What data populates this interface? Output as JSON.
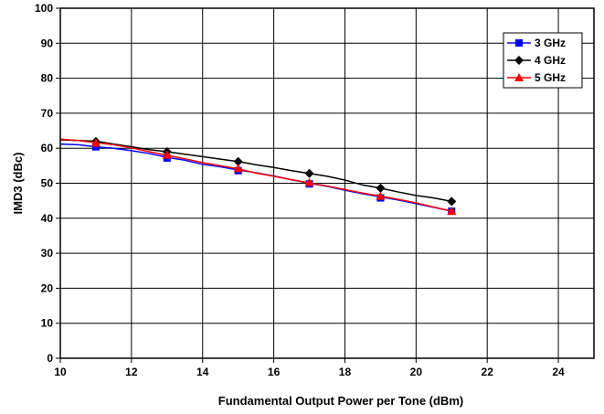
{
  "chart_data": {
    "type": "line",
    "title": "",
    "xlabel": "Fundamental Output Power per Tone (dBm)",
    "ylabel": "IMD3 (dBc)",
    "xlim": [
      10,
      25
    ],
    "ylim": [
      0,
      100
    ],
    "x_ticks": [
      10,
      12,
      14,
      16,
      18,
      20,
      22,
      24
    ],
    "y_ticks": [
      0,
      10,
      20,
      30,
      40,
      50,
      60,
      70,
      80,
      90,
      100
    ],
    "grid": true,
    "legend_position": "top-right",
    "series": [
      {
        "name": "3 GHz",
        "color": "#0000ff",
        "marker": "square",
        "line": [
          [
            10,
            61.2
          ],
          [
            10.5,
            61.0
          ],
          [
            11,
            60.4
          ],
          [
            11.5,
            60.0
          ],
          [
            12,
            59.3
          ],
          [
            12.5,
            58.5
          ],
          [
            13,
            57.4
          ],
          [
            13.5,
            56.6
          ],
          [
            14,
            55.4
          ],
          [
            14.5,
            54.7
          ],
          [
            15,
            53.8
          ],
          [
            15.5,
            53.0
          ],
          [
            16,
            52.1
          ],
          [
            16.5,
            51.0
          ],
          [
            17,
            50.0
          ],
          [
            17.5,
            49.1
          ],
          [
            18,
            48.0
          ],
          [
            18.5,
            47.0
          ],
          [
            19,
            46.1
          ],
          [
            19.5,
            45.2
          ],
          [
            20,
            44.2
          ],
          [
            20.5,
            43.1
          ],
          [
            21,
            42.0
          ]
        ],
        "markers": [
          [
            11,
            60.4
          ],
          [
            13,
            57.2
          ],
          [
            15,
            53.6
          ],
          [
            17,
            49.8
          ],
          [
            19,
            45.8
          ],
          [
            21,
            42.0
          ]
        ]
      },
      {
        "name": "4 GHz",
        "color": "#000000",
        "marker": "diamond",
        "line": [
          [
            10,
            62.4
          ],
          [
            10.5,
            62.2
          ],
          [
            11,
            62.0
          ],
          [
            11.5,
            61.2
          ],
          [
            12,
            60.4
          ],
          [
            12.5,
            59.6
          ],
          [
            13,
            59.0
          ],
          [
            13.5,
            58.3
          ],
          [
            14,
            57.6
          ],
          [
            14.5,
            56.9
          ],
          [
            15,
            56.2
          ],
          [
            15.5,
            55.3
          ],
          [
            16,
            54.5
          ],
          [
            16.5,
            53.6
          ],
          [
            17,
            52.8
          ],
          [
            17.5,
            52.0
          ],
          [
            18,
            50.9
          ],
          [
            18.5,
            49.5
          ],
          [
            19,
            48.6
          ],
          [
            19.5,
            47.5
          ],
          [
            20,
            46.5
          ],
          [
            20.5,
            45.8
          ],
          [
            21,
            44.8
          ]
        ],
        "markers": [
          [
            11,
            61.9
          ],
          [
            13,
            59.0
          ],
          [
            15,
            56.2
          ],
          [
            17,
            52.8
          ],
          [
            19,
            48.6
          ],
          [
            21,
            44.8
          ]
        ]
      },
      {
        "name": "5 GHz",
        "color": "#ff0000",
        "marker": "triangle",
        "line": [
          [
            10,
            62.6
          ],
          [
            10.5,
            62.2
          ],
          [
            11,
            61.6
          ],
          [
            11.5,
            61.0
          ],
          [
            12,
            60.1
          ],
          [
            12.5,
            59.0
          ],
          [
            13,
            58.0
          ],
          [
            13.5,
            57.0
          ],
          [
            14,
            55.9
          ],
          [
            14.5,
            55.0
          ],
          [
            15,
            54.1
          ],
          [
            15.5,
            52.9
          ],
          [
            16,
            52.0
          ],
          [
            16.5,
            51.0
          ],
          [
            17,
            50.1
          ],
          [
            17.5,
            49.2
          ],
          [
            18,
            48.2
          ],
          [
            18.5,
            47.2
          ],
          [
            19,
            46.3
          ],
          [
            19.5,
            45.4
          ],
          [
            20,
            44.4
          ],
          [
            20.5,
            43.2
          ],
          [
            21,
            42.0
          ]
        ],
        "markers": [
          [
            11,
            61.5
          ],
          [
            13,
            58.1
          ],
          [
            15,
            54.2
          ],
          [
            17,
            50.2
          ],
          [
            19,
            46.3
          ],
          [
            21,
            42.0
          ]
        ]
      }
    ]
  }
}
